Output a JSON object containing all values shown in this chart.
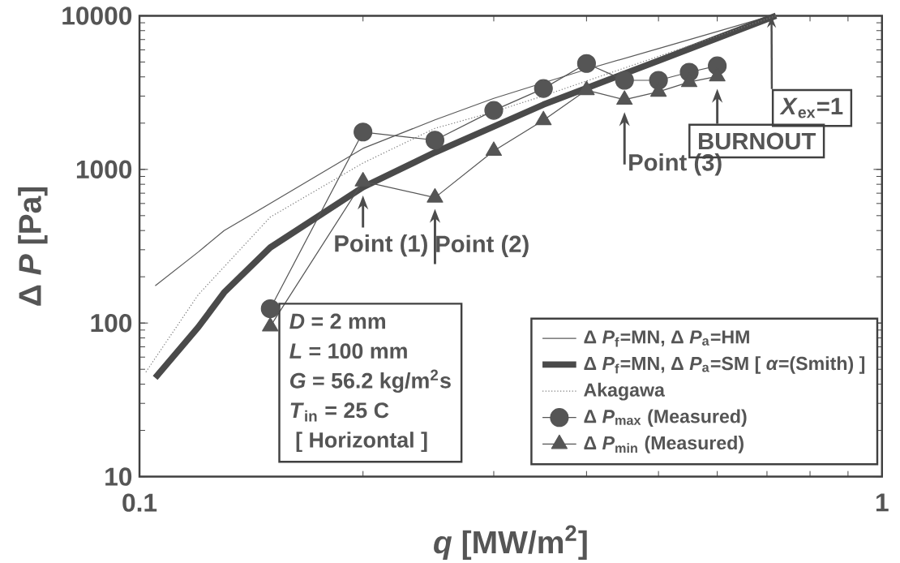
{
  "chart_data": {
    "type": "line",
    "xlabel": "*q* [MW/m$^{2}$]",
    "ylabel": "Δ *P*  [Pa]",
    "log": "xy",
    "grid": false,
    "legend": "bottom right",
    "xlim": [
      0.1,
      1
    ],
    "ylim": [
      10,
      10000
    ],
    "xticks": [
      0.1,
      1
    ],
    "yticks": [
      10,
      100,
      1000,
      10000
    ],
    "series": [
      {
        "name": "Δ *P*$_{f}$=MN,  Δ *P*$_{a}$=HM",
        "color": "#5a5a5a",
        "marker": "none",
        "line_style": "solid",
        "x": [
          0.105,
          0.12,
          0.13,
          0.15,
          0.2,
          0.25,
          0.3,
          0.4,
          0.5,
          0.6,
          0.71
        ],
        "values": [
          175,
          290,
          400,
          600,
          1370,
          2100,
          2900,
          4480,
          6120,
          7890,
          10000
        ]
      },
      {
        "name": "Δ *P*$_{f}$=MN,  Δ *P*$_{a}$=SM [ *α*=(Smith) ]",
        "color": "#4a4a4a",
        "marker": "none",
        "line_style": "solid",
        "x": [
          0.105,
          0.12,
          0.13,
          0.15,
          0.2,
          0.25,
          0.3,
          0.35,
          0.4,
          0.5,
          0.6,
          0.72
        ],
        "values": [
          44,
          94,
          158,
          310,
          766,
          1290,
          1900,
          2640,
          3380,
          5100,
          7150,
          10000
        ]
      },
      {
        "name": "Akagawa",
        "color": "#7a7a7a",
        "marker": "none",
        "line_style": "dotted",
        "x": [
          0.102,
          0.12,
          0.15,
          0.2,
          0.25,
          0.3,
          0.35,
          0.4,
          0.5,
          0.6,
          0.72
        ],
        "values": [
          48,
          153,
          489,
          1100,
          1850,
          2370,
          3010,
          3760,
          5440,
          7360,
          10000
        ]
      },
      {
        "name": "Δ *P*$_{max}$  (Measured)",
        "color": "#555555",
        "marker": "circle",
        "line_style": "solid",
        "x": [
          0.15,
          0.2,
          0.25,
          0.3,
          0.35,
          0.4,
          0.45,
          0.5,
          0.55,
          0.6
        ],
        "values": [
          124,
          1750,
          1550,
          2420,
          3360,
          4890,
          3800,
          3800,
          4290,
          4720
        ]
      },
      {
        "name": "Δ *P*$_{min}$  (Measured)",
        "color": "#555555",
        "marker": "triangle",
        "line_style": "solid",
        "x": [
          0.15,
          0.2,
          0.25,
          0.3,
          0.35,
          0.4,
          0.45,
          0.5,
          0.55,
          0.6
        ],
        "values": [
          95,
          835,
          655,
          1320,
          2090,
          3280,
          2840,
          3200,
          3700,
          4030
        ]
      }
    ],
    "annotations": [
      "*D*    = 2 mm",
      "*L*    = 100 mm",
      "*G*    = 56.2 kg/m$^{2}$s",
      "*T*$_{in}$ = 25 C",
      " [ Horizontal ]",
      {
        "text": "Point (1)",
        "x": 0.2,
        "y": 835
      },
      {
        "text": "Point (2)",
        "x": 0.25,
        "y": 655
      },
      {
        "text": "Point (3)",
        "x": 0.45,
        "y": 2840
      },
      {
        "text": "BURNOUT",
        "x": 0.6,
        "y": 4030
      },
      {
        "text": "*X*$_{ex}$=1",
        "x": 0.71,
        "y": 10000
      }
    ]
  }
}
